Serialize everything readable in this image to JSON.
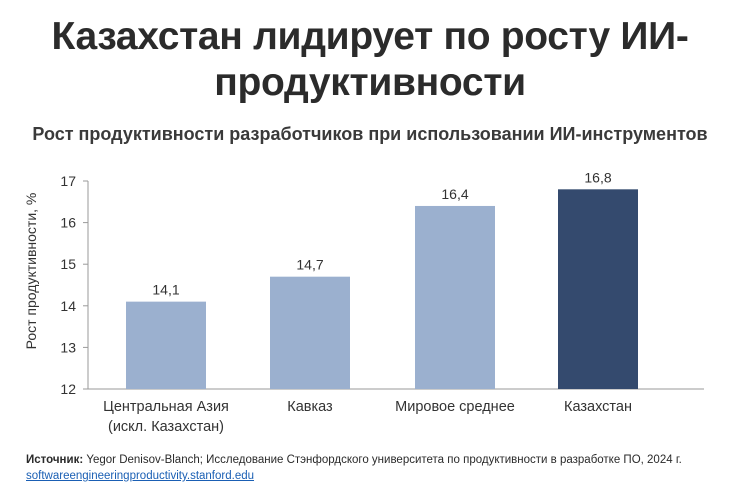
{
  "page": {
    "title_line1": "Казахстан лидирует по росту ИИ-",
    "title_line2": "продуктивности",
    "subtitle": "Рост продуктивности разработчиков при использовании ИИ-инструментов",
    "source_label": "Источник:",
    "source_text": " Yegor Denisov-Blanch; Исследование Стэнфордского университета по продуктивности в разработке ПО, 2024 г.",
    "source_link": "softwareengineeringproductivity.stanford.edu"
  },
  "chart_data": {
    "type": "bar",
    "ylabel": "Рост продуктивности, %",
    "ylim": [
      12,
      17
    ],
    "yticks": [
      12,
      13,
      14,
      15,
      16,
      17
    ],
    "grid": false,
    "categories": [
      [
        "Центральная Азия",
        "(искл. Казахстан)"
      ],
      [
        "Кавказ"
      ],
      [
        "Мировое среднее"
      ],
      [
        "Казахстан"
      ]
    ],
    "values": [
      14.1,
      14.7,
      16.4,
      16.8
    ],
    "value_labels": [
      "14,1",
      "14,7",
      "16,4",
      "16,8"
    ],
    "colors": [
      "#9bb0cf",
      "#9bb0cf",
      "#9bb0cf",
      "#344a6e"
    ]
  }
}
